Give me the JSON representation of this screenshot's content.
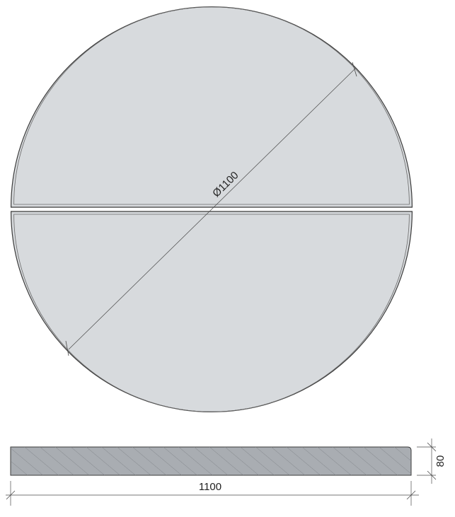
{
  "top_view": {
    "diameter_label": "Ø1100"
  },
  "side_view": {
    "length_label": "1100",
    "thickness_label": "80"
  },
  "colors": {
    "panel_fill": "#d7dadd",
    "panel_edge": "#3a3a3a",
    "section_fill": "#a9adb2",
    "hatch": "#7f8388",
    "dimension_line": "#4a4a4a"
  }
}
